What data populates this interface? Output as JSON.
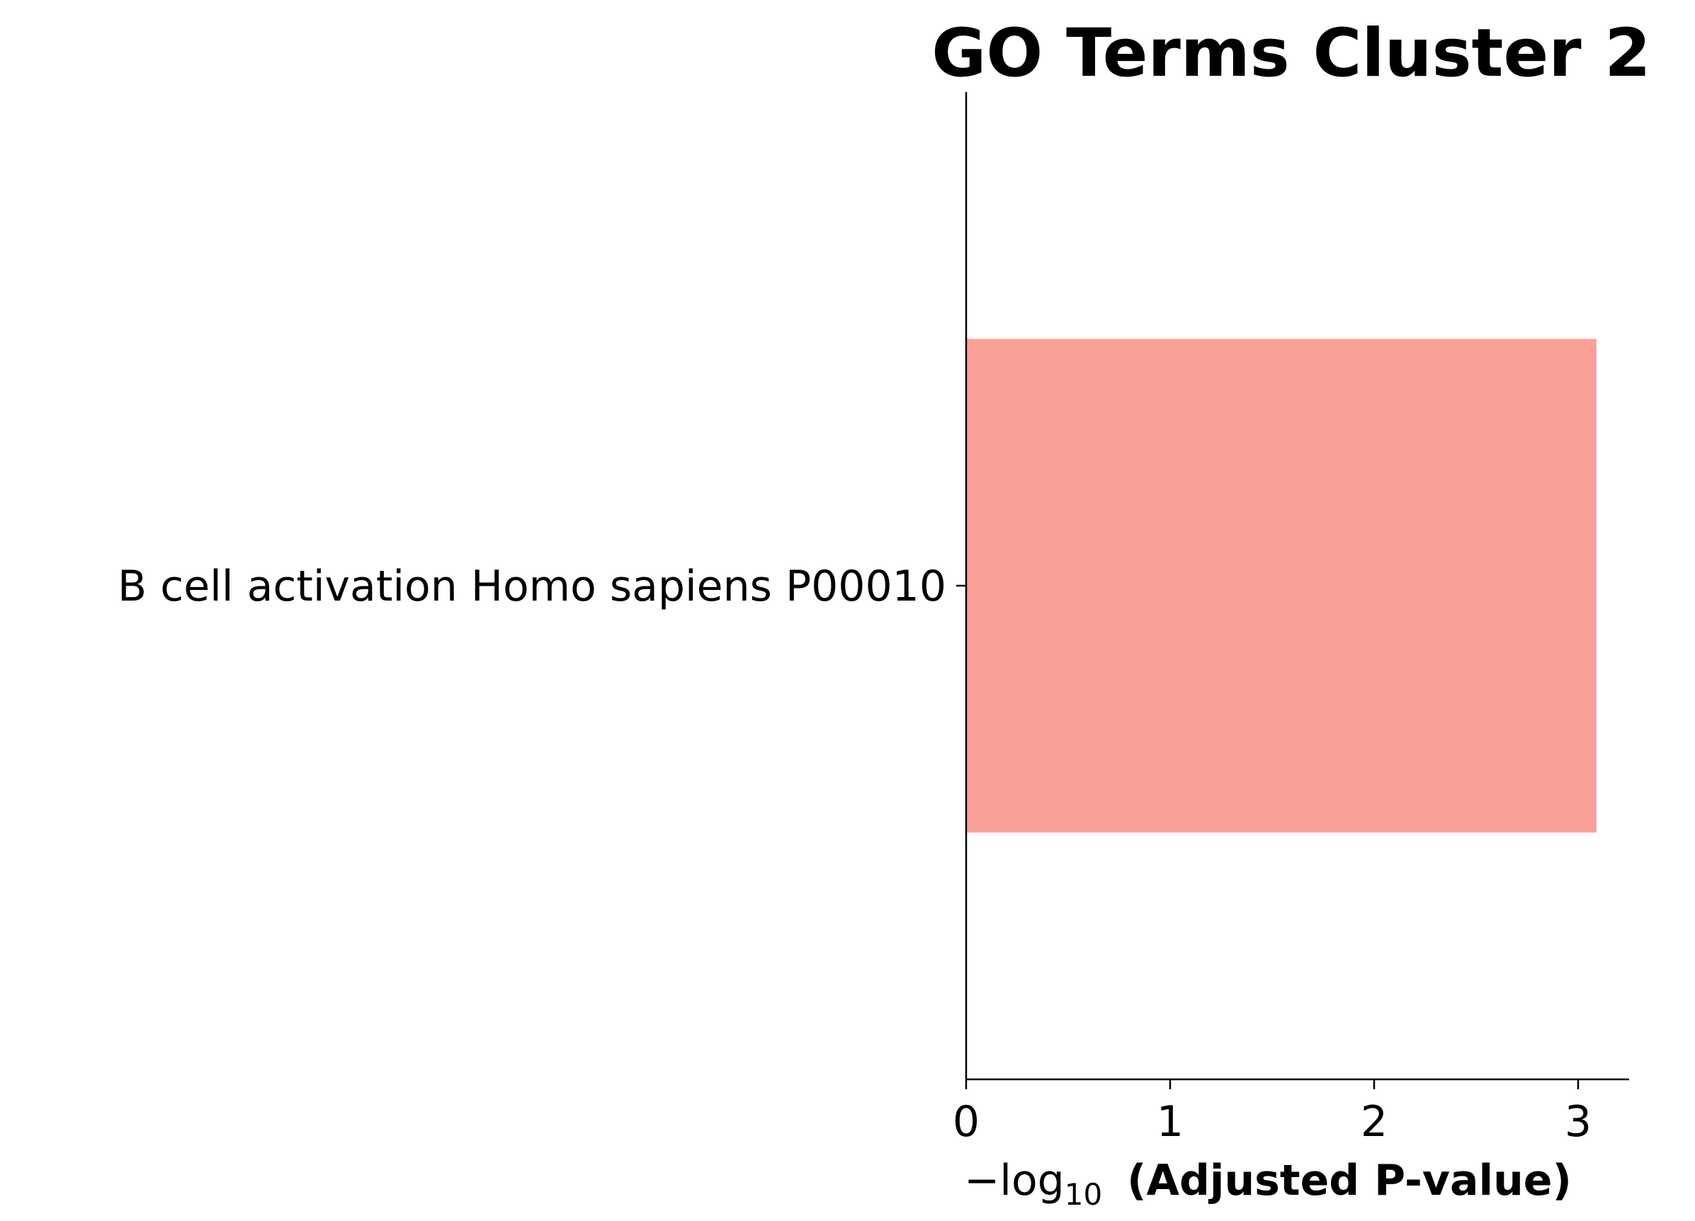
{
  "chart_data": {
    "type": "bar",
    "orientation": "horizontal",
    "title": "GO Terms Cluster 2",
    "categories": [
      "B cell activation Homo sapiens P00010"
    ],
    "values": [
      3.09
    ],
    "xlabel": {
      "prefix": "−log",
      "subscript": "10",
      "main": " (Adjusted P-value)"
    },
    "ylabel": "",
    "xlim": [
      0,
      3.25
    ],
    "xticks": [
      0,
      1,
      2,
      3
    ],
    "grid": false,
    "legend": "none",
    "bar_color": "#f9a197",
    "axis_color": "#000000"
  }
}
